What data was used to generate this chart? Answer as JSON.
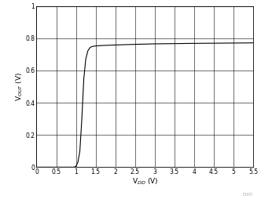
{
  "title": "",
  "xlabel": "V$_{DD}$ (V)",
  "ylabel": "V$_{OUT}$ (V)",
  "xlim": [
    0,
    5.5
  ],
  "ylim": [
    0,
    1.0
  ],
  "xticks": [
    0,
    0.5,
    1,
    1.5,
    2,
    2.5,
    3,
    3.5,
    4,
    4.5,
    5,
    5.5
  ],
  "xtick_labels": [
    "0",
    "0.5",
    "1",
    "1.5",
    "2",
    "2.5",
    "3",
    "3.5",
    "4",
    "4.5",
    "5",
    "5.5"
  ],
  "yticks": [
    0,
    0.2,
    0.4,
    0.6,
    0.8,
    1
  ],
  "ytick_labels": [
    "0",
    "0.2",
    "0.4",
    "0.6",
    "0.8",
    "1"
  ],
  "line_color": "#000000",
  "background_color": "#ffffff",
  "grid_color": "#000000",
  "watermark": "D005",
  "curve_x": [
    0.0,
    0.95,
    1.0,
    1.05,
    1.1,
    1.15,
    1.2,
    1.25,
    1.3,
    1.35,
    1.4,
    1.5,
    1.6,
    1.8,
    2.0,
    2.5,
    3.0,
    4.0,
    5.0,
    5.5
  ],
  "curve_y": [
    0.0,
    0.0,
    0.005,
    0.03,
    0.1,
    0.3,
    0.55,
    0.67,
    0.72,
    0.74,
    0.748,
    0.752,
    0.754,
    0.756,
    0.758,
    0.762,
    0.765,
    0.768,
    0.77,
    0.771
  ]
}
